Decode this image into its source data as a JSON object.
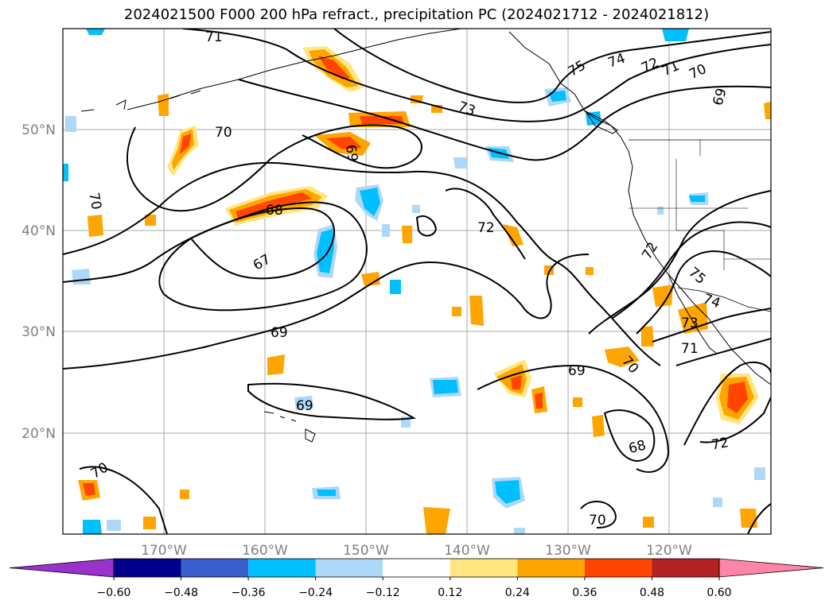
{
  "title": "2024021500 F000 200 hPa refract., precipitation PC (2024021712 - 2024021812)",
  "map": {
    "lat_labels": [
      "50°N",
      "40°N",
      "30°N",
      "20°N"
    ],
    "lon_labels": [
      "170°W",
      "160°W",
      "150°W",
      "140°W",
      "130°W",
      "120°W"
    ],
    "contour_labels": [
      "71",
      "70",
      "70",
      "69",
      "68",
      "67",
      "69",
      "69",
      "73",
      "72",
      "75",
      "74",
      "72",
      "71",
      "70",
      "69",
      "72",
      "75",
      "74",
      "73",
      "71",
      "70",
      "69",
      "68",
      "72",
      "70",
      "70"
    ]
  },
  "colorbar": {
    "ticks": [
      "−0.60",
      "−0.48",
      "−0.36",
      "−0.24",
      "−0.12",
      "0.12",
      "0.24",
      "0.36",
      "0.48",
      "0.60"
    ],
    "colors": [
      "#9932cc",
      "#00008b",
      "#3a5fcd",
      "#00bfff",
      "#add8f8",
      "#ffffff",
      "#ffe680",
      "#ffa500",
      "#ff4500",
      "#b22222",
      "#ff85a8"
    ]
  }
}
